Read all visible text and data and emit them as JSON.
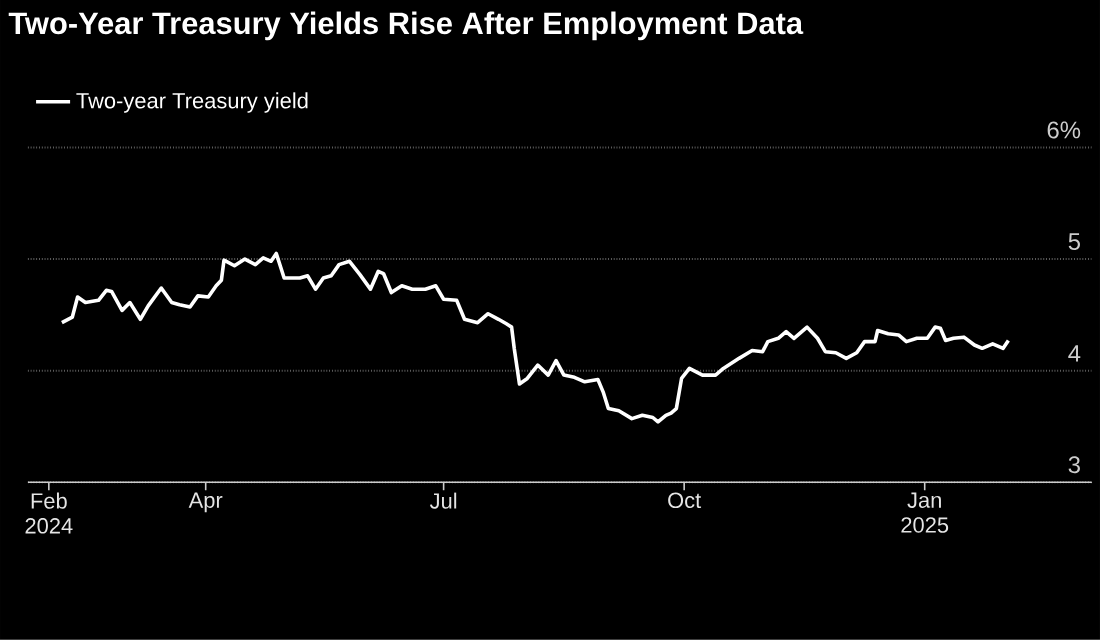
{
  "chart_data": {
    "type": "line",
    "title": "Two-Year Treasury Yields Rise After Employment Data",
    "x": [
      "2024-02-06",
      "2024-02-10",
      "2024-02-12",
      "2024-02-15",
      "2024-02-20",
      "2024-02-23",
      "2024-02-25",
      "2024-02-29",
      "2024-03-03",
      "2024-03-07",
      "2024-03-10",
      "2024-03-15",
      "2024-03-19",
      "2024-03-22",
      "2024-03-26",
      "2024-03-29",
      "2024-04-02",
      "2024-04-05",
      "2024-04-07",
      "2024-04-08",
      "2024-04-12",
      "2024-04-16",
      "2024-04-20",
      "2024-04-23",
      "2024-04-26",
      "2024-04-28",
      "2024-05-01",
      "2024-05-07",
      "2024-05-10",
      "2024-05-13",
      "2024-05-16",
      "2024-05-19",
      "2024-05-22",
      "2024-05-26",
      "2024-05-30",
      "2024-06-03",
      "2024-06-06",
      "2024-06-08",
      "2024-06-11",
      "2024-06-15",
      "2024-06-19",
      "2024-06-24",
      "2024-06-28",
      "2024-07-01",
      "2024-07-06",
      "2024-07-09",
      "2024-07-14",
      "2024-07-18",
      "2024-07-22",
      "2024-07-25",
      "2024-07-27",
      "2024-07-28",
      "2024-07-30",
      "2024-08-02",
      "2024-08-06",
      "2024-08-10",
      "2024-08-13",
      "2024-08-16",
      "2024-08-20",
      "2024-08-24",
      "2024-08-29",
      "2024-08-31",
      "2024-09-02",
      "2024-09-06",
      "2024-09-11",
      "2024-09-15",
      "2024-09-19",
      "2024-09-21",
      "2024-09-24",
      "2024-09-26",
      "2024-09-28",
      "2024-09-30",
      "2024-10-03",
      "2024-10-08",
      "2024-10-13",
      "2024-10-16",
      "2024-10-22",
      "2024-10-27",
      "2024-10-31",
      "2024-11-02",
      "2024-11-06",
      "2024-11-09",
      "2024-11-12",
      "2024-11-17",
      "2024-11-21",
      "2024-11-24",
      "2024-11-28",
      "2024-12-02",
      "2024-12-06",
      "2024-12-09",
      "2024-12-13",
      "2024-12-14",
      "2024-12-18",
      "2024-12-22",
      "2024-12-25",
      "2024-12-29",
      "2025-01-02",
      "2025-01-05",
      "2025-01-07",
      "2025-01-09",
      "2025-01-12",
      "2025-01-16",
      "2025-01-20",
      "2025-01-23",
      "2025-01-27",
      "2025-01-31",
      "2025-02-02"
    ],
    "series": [
      {
        "name": "Two-year Treasury yield",
        "color": "#ffffff",
        "values": [
          4.43,
          4.48,
          4.66,
          4.61,
          4.63,
          4.72,
          4.71,
          4.54,
          4.61,
          4.46,
          4.58,
          4.74,
          4.61,
          4.59,
          4.57,
          4.67,
          4.66,
          4.76,
          4.81,
          4.99,
          4.94,
          5.0,
          4.95,
          5.01,
          4.98,
          5.05,
          4.83,
          4.83,
          4.85,
          4.73,
          4.83,
          4.85,
          4.95,
          4.98,
          4.86,
          4.73,
          4.89,
          4.87,
          4.7,
          4.76,
          4.73,
          4.73,
          4.76,
          4.64,
          4.63,
          4.46,
          4.43,
          4.51,
          4.46,
          4.42,
          4.39,
          4.2,
          3.88,
          3.93,
          4.05,
          3.96,
          4.09,
          3.96,
          3.94,
          3.9,
          3.92,
          3.81,
          3.66,
          3.64,
          3.57,
          3.6,
          3.58,
          3.54,
          3.6,
          3.62,
          3.66,
          3.93,
          4.02,
          3.96,
          3.96,
          4.02,
          4.11,
          4.18,
          4.17,
          4.26,
          4.29,
          4.35,
          4.29,
          4.39,
          4.29,
          4.17,
          4.16,
          4.11,
          4.16,
          4.26,
          4.26,
          4.36,
          4.33,
          4.32,
          4.26,
          4.29,
          4.29,
          4.39,
          4.38,
          4.27,
          4.29,
          4.3,
          4.23,
          4.2,
          4.24,
          4.2,
          4.27
        ]
      }
    ],
    "xlim": [
      "2024-01-24",
      "2025-03-06"
    ],
    "xticks": [
      {
        "value": "2024-02-01",
        "label": "Feb 2024"
      },
      {
        "value": "2024-04-01",
        "label": "Apr"
      },
      {
        "value": "2024-07-01",
        "label": "Jul"
      },
      {
        "value": "2024-10-01",
        "label": "Oct"
      },
      {
        "value": "2025-01-01",
        "label": "Jan 2025"
      }
    ],
    "ylim": [
      3,
      6
    ],
    "yticks": [
      3,
      4,
      5,
      {
        "value": 6,
        "label": "6%"
      }
    ],
    "grid": "y",
    "legend": "top left"
  }
}
